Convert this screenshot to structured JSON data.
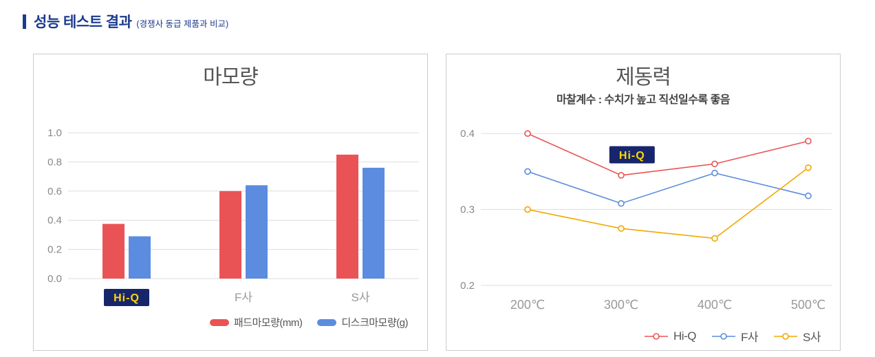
{
  "header": {
    "title": "성능 테스트 결과",
    "subtitle": "(경쟁사 동급 제품과 비교)"
  },
  "colors": {
    "navy": "#1b3b8e",
    "badge_bg": "#17266b",
    "badge_text": "#ffd800",
    "red": "#ea5355",
    "blue": "#5b8ce0",
    "yellow": "#efa800",
    "grid": "#dddddd",
    "axis_text": "#888888",
    "category_text": "#999999",
    "title_text": "#555555"
  },
  "chart_data": [
    {
      "type": "bar",
      "title": "마모량",
      "categories": [
        "Hi-Q",
        "F사",
        "S사"
      ],
      "series": [
        {
          "name": "패드마모량(mm)",
          "color_key": "red",
          "values": [
            0.375,
            0.6,
            0.85
          ]
        },
        {
          "name": "디스크마모량(g)",
          "color_key": "blue",
          "values": [
            0.29,
            0.64,
            0.76
          ]
        }
      ],
      "ylim": [
        0,
        1.0
      ],
      "yticks": [
        0.0,
        0.2,
        0.4,
        0.6,
        0.8,
        1.0
      ],
      "ytick_labels": [
        "0.0",
        "0.2",
        "0.4",
        "0.6",
        "0.8",
        "1.0"
      ],
      "highlight_category": "Hi-Q",
      "grid": true,
      "legend_position": "bottom-right"
    },
    {
      "type": "line",
      "title": "제동력",
      "subtitle": "마찰계수 : 수치가 높고 직선일수록 좋음",
      "x": [
        "200℃",
        "300℃",
        "400℃",
        "500℃"
      ],
      "series": [
        {
          "name": "Hi-Q",
          "color_key": "red",
          "values": [
            0.4,
            0.345,
            0.36,
            0.39
          ]
        },
        {
          "name": "F사",
          "color_key": "blue",
          "values": [
            0.35,
            0.308,
            0.348,
            0.318
          ]
        },
        {
          "name": "S사",
          "color_key": "yellow",
          "values": [
            0.3,
            0.275,
            0.262,
            0.355
          ]
        }
      ],
      "ylim": [
        0.2,
        0.42
      ],
      "yticks": [
        0.2,
        0.3,
        0.4
      ],
      "ytick_labels": [
        "0.2",
        "0.3",
        "0.4"
      ],
      "annotation": {
        "label": "Hi-Q",
        "x_frac": 0.431,
        "y_value": 0.372
      },
      "grid": true,
      "legend_position": "bottom-right"
    }
  ]
}
